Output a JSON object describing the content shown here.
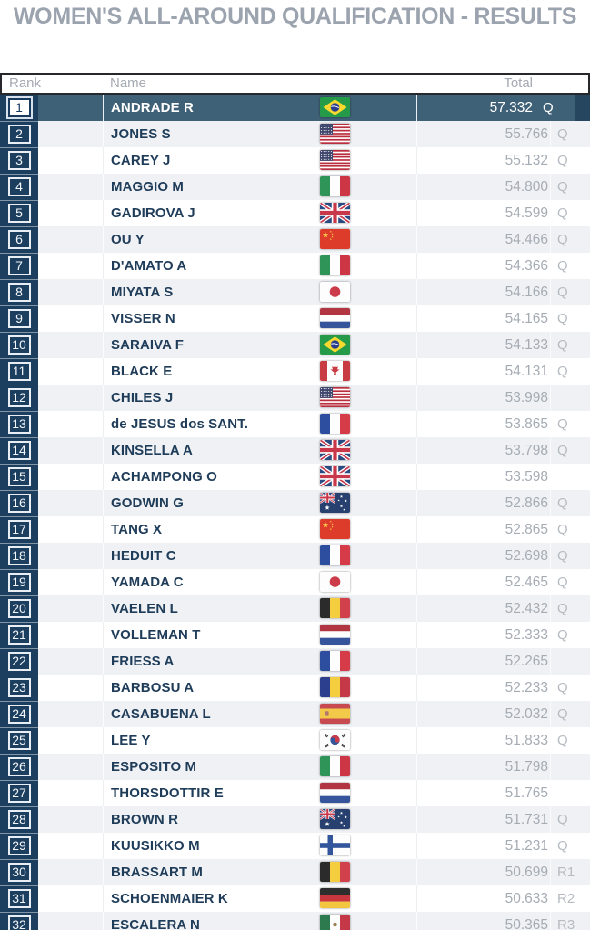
{
  "title": "WOMEN'S ALL-AROUND QUALIFICATION - RESULTS",
  "colors": {
    "title_gray": "#9ba3af",
    "rank_strip_navy": "#1c3e5f",
    "selected_row_teal": "#3f6177",
    "row_alt_gray": "#eff1f4",
    "name_text_navy": "#1f3c59",
    "score_gray": "#a6acb4",
    "header_border_dark": "#26282b"
  },
  "table": {
    "columns": {
      "rank": "Rank",
      "name": "Name",
      "total": "Total"
    },
    "rows": [
      {
        "rank": 1,
        "name": "ANDRADE R",
        "country": "BRA",
        "total": "57.332",
        "qual": "Q",
        "selected": true
      },
      {
        "rank": 2,
        "name": "JONES S",
        "country": "USA",
        "total": "55.766",
        "qual": "Q",
        "selected": false
      },
      {
        "rank": 3,
        "name": "CAREY J",
        "country": "USA",
        "total": "55.132",
        "qual": "Q",
        "selected": false
      },
      {
        "rank": 4,
        "name": "MAGGIO M",
        "country": "ITA",
        "total": "54.800",
        "qual": "Q",
        "selected": false
      },
      {
        "rank": 5,
        "name": "GADIROVA J",
        "country": "GBR",
        "total": "54.599",
        "qual": "Q",
        "selected": false
      },
      {
        "rank": 6,
        "name": "OU Y",
        "country": "CHN",
        "total": "54.466",
        "qual": "Q",
        "selected": false
      },
      {
        "rank": 7,
        "name": "D'AMATO A",
        "country": "ITA",
        "total": "54.366",
        "qual": "Q",
        "selected": false
      },
      {
        "rank": 8,
        "name": "MIYATA S",
        "country": "JPN",
        "total": "54.166",
        "qual": "Q",
        "selected": false
      },
      {
        "rank": 9,
        "name": "VISSER N",
        "country": "NED",
        "total": "54.165",
        "qual": "Q",
        "selected": false
      },
      {
        "rank": 10,
        "name": "SARAIVA F",
        "country": "BRA",
        "total": "54.133",
        "qual": "Q",
        "selected": false
      },
      {
        "rank": 11,
        "name": "BLACK E",
        "country": "CAN",
        "total": "54.131",
        "qual": "Q",
        "selected": false
      },
      {
        "rank": 12,
        "name": "CHILES J",
        "country": "USA",
        "total": "53.998",
        "qual": "",
        "selected": false
      },
      {
        "rank": 13,
        "name": "de JESUS dos SANT.",
        "country": "FRA",
        "total": "53.865",
        "qual": "Q",
        "selected": false
      },
      {
        "rank": 14,
        "name": "KINSELLA A",
        "country": "GBR",
        "total": "53.798",
        "qual": "Q",
        "selected": false
      },
      {
        "rank": 15,
        "name": "ACHAMPONG O",
        "country": "GBR",
        "total": "53.598",
        "qual": "",
        "selected": false
      },
      {
        "rank": 16,
        "name": "GODWIN G",
        "country": "AUS",
        "total": "52.866",
        "qual": "Q",
        "selected": false
      },
      {
        "rank": 17,
        "name": "TANG X",
        "country": "CHN",
        "total": "52.865",
        "qual": "Q",
        "selected": false
      },
      {
        "rank": 18,
        "name": "HEDUIT C",
        "country": "FRA",
        "total": "52.698",
        "qual": "Q",
        "selected": false
      },
      {
        "rank": 19,
        "name": "YAMADA C",
        "country": "JPN",
        "total": "52.465",
        "qual": "Q",
        "selected": false
      },
      {
        "rank": 20,
        "name": "VAELEN L",
        "country": "BEL",
        "total": "52.432",
        "qual": "Q",
        "selected": false
      },
      {
        "rank": 21,
        "name": "VOLLEMAN T",
        "country": "NED",
        "total": "52.333",
        "qual": "Q",
        "selected": false
      },
      {
        "rank": 22,
        "name": "FRIESS A",
        "country": "FRA",
        "total": "52.265",
        "qual": "",
        "selected": false
      },
      {
        "rank": 23,
        "name": "BARBOSU A",
        "country": "ROU",
        "total": "52.233",
        "qual": "Q",
        "selected": false
      },
      {
        "rank": 24,
        "name": "CASABUENA L",
        "country": "ESP",
        "total": "52.032",
        "qual": "Q",
        "selected": false
      },
      {
        "rank": 25,
        "name": "LEE Y",
        "country": "KOR",
        "total": "51.833",
        "qual": "Q",
        "selected": false
      },
      {
        "rank": 26,
        "name": "ESPOSITO M",
        "country": "ITA",
        "total": "51.798",
        "qual": "",
        "selected": false
      },
      {
        "rank": 27,
        "name": "THORSDOTTIR E",
        "country": "NED",
        "total": "51.765",
        "qual": "",
        "selected": false
      },
      {
        "rank": 28,
        "name": "BROWN R",
        "country": "AUS",
        "total": "51.731",
        "qual": "Q",
        "selected": false
      },
      {
        "rank": 29,
        "name": "KUUSIKKO M",
        "country": "FIN",
        "total": "51.231",
        "qual": "Q",
        "selected": false
      },
      {
        "rank": 30,
        "name": "BRASSART M",
        "country": "BEL",
        "total": "50.699",
        "qual": "R1",
        "selected": false
      },
      {
        "rank": 31,
        "name": "SCHOENMAIER K",
        "country": "GER",
        "total": "50.633",
        "qual": "R2",
        "selected": false
      },
      {
        "rank": 32,
        "name": "ESCALERA N",
        "country": "MEX",
        "total": "50.365",
        "qual": "R3",
        "selected": false
      }
    ]
  }
}
